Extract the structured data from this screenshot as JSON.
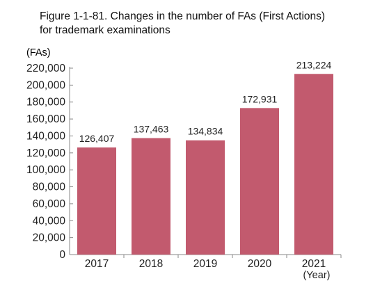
{
  "title_lines": [
    "Figure 1-1-81. Changes in the number of FAs (First Actions)",
    "for trademark examinations"
  ],
  "chart_data": {
    "type": "bar",
    "title": "Figure 1-1-81. Changes in the number of FAs (First Actions) for trademark examinations",
    "ylabel": "(FAs)",
    "xlabel": "(Year)",
    "categories": [
      "2017",
      "2018",
      "2019",
      "2020",
      "2021"
    ],
    "values": [
      126407,
      137463,
      134834,
      172931,
      213224
    ],
    "data_labels": [
      "126,407",
      "137,463",
      "134,834",
      "172,931",
      "213,224"
    ],
    "ylim": [
      0,
      220000
    ],
    "yticks": [
      0,
      20000,
      40000,
      60000,
      80000,
      100000,
      120000,
      140000,
      160000,
      180000,
      200000,
      220000
    ],
    "ytick_labels": [
      "0",
      "20,000",
      "40,000",
      "60,000",
      "80,000",
      "100,000",
      "120,000",
      "140,000",
      "160,000",
      "180,000",
      "200,000",
      "220,000"
    ],
    "grid": false,
    "bar_color": "#c25a6e",
    "axis_color": "#888888"
  }
}
